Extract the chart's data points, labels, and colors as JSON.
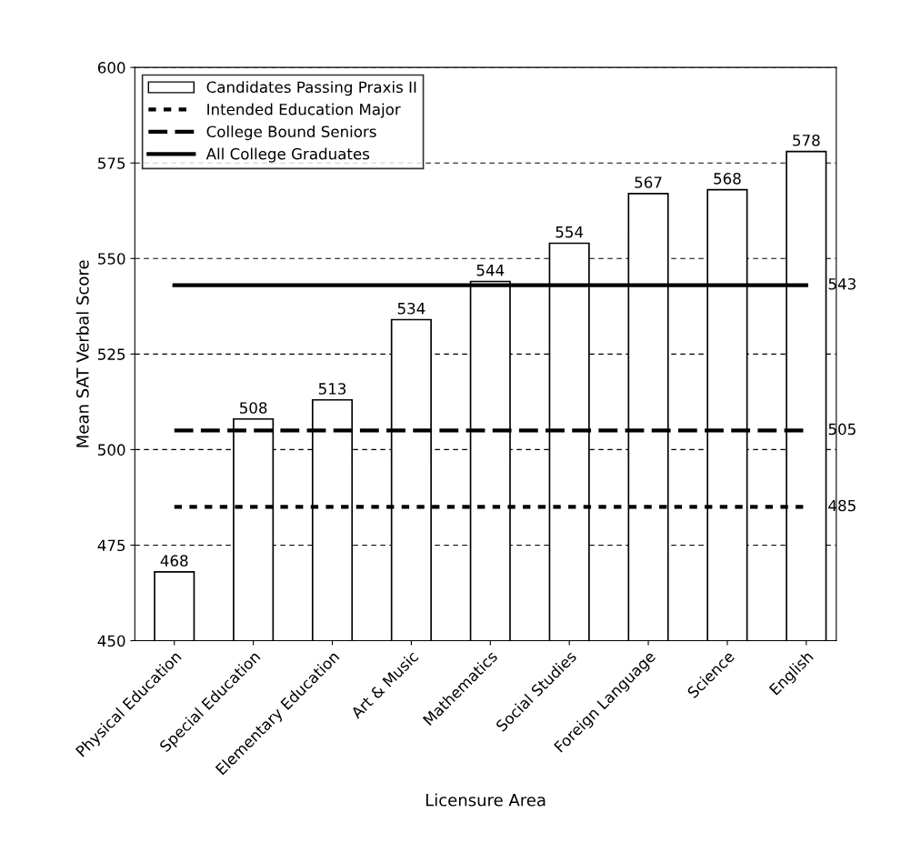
{
  "chart_data": {
    "type": "bar",
    "xlabel": "Licensure Area",
    "ylabel": "Mean SAT Verbal Score",
    "categories": [
      "Physical Education",
      "Special Education",
      "Elementary Education",
      "Art & Music",
      "Mathematics",
      "Social Studies",
      "Foreign Language",
      "Science",
      "English"
    ],
    "series": [
      {
        "name": "Candidates Passing Praxis II",
        "color": "#ffffff",
        "values": [
          468,
          508,
          513,
          534,
          544,
          554,
          567,
          568,
          578
        ],
        "value_labels": [
          "468",
          "508",
          "513",
          "534",
          "544",
          "554",
          "567",
          "568",
          "578"
        ]
      },
      {
        "name": "Intended Education Major",
        "type": "line",
        "color": "#000000",
        "line_style": "dotted",
        "values": [
          485,
          485,
          485,
          485,
          485,
          485,
          485,
          485,
          485
        ],
        "value_labels": [
          null,
          null,
          null,
          null,
          null,
          null,
          null,
          null,
          "485"
        ]
      },
      {
        "name": "College Bound Seniors",
        "type": "line",
        "color": "#000000",
        "line_style": "dashed",
        "values": [
          505,
          505,
          505,
          505,
          505,
          505,
          505,
          505,
          505
        ],
        "value_labels": [
          null,
          null,
          null,
          null,
          null,
          null,
          null,
          null,
          "505"
        ]
      },
      {
        "name": "All College Graduates",
        "type": "line",
        "color": "#000000",
        "line_style": "solid",
        "values": [
          543,
          543,
          543,
          543,
          543,
          543,
          543,
          543,
          543
        ],
        "value_labels": [
          null,
          null,
          null,
          null,
          null,
          null,
          null,
          null,
          "543"
        ]
      }
    ],
    "ylim": [
      450,
      600
    ],
    "yticks": [
      450,
      475,
      500,
      525,
      550,
      575,
      600
    ],
    "grid": "y",
    "legend": "top left",
    "marker": "none"
  }
}
